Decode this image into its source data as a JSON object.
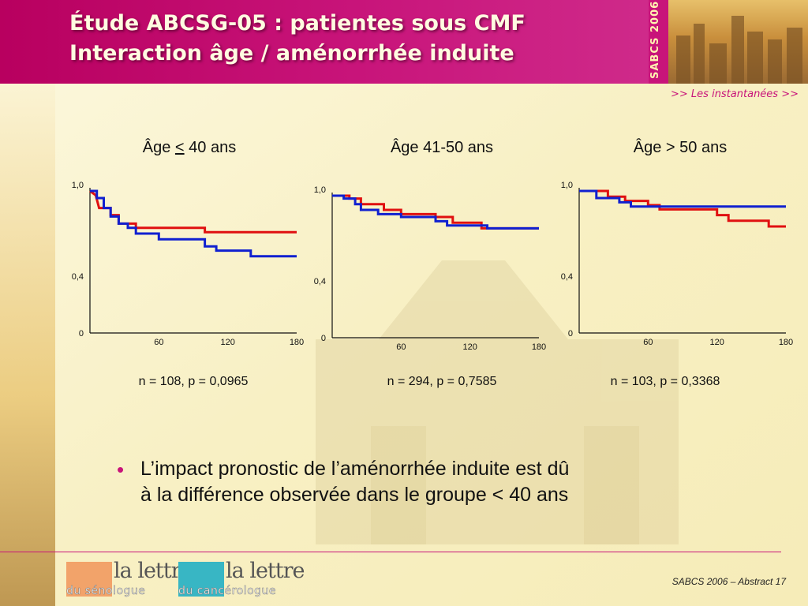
{
  "header": {
    "title_line1": "Étude ABCSG-05 : patientes sous CMF",
    "title_line2": "Interaction âge / aménorrhée induite",
    "sabcs_badge": "SABCS 2006",
    "nav_link": ">> Les instantanées >>"
  },
  "chart_data": [
    {
      "type": "line",
      "title_prefix": "Âge ",
      "title_symbol": "<",
      "title_suffix": " 40 ans",
      "stat": "n = 108, p = 0,0965",
      "xlim": [
        0,
        180
      ],
      "ylim": [
        0,
        1.0
      ],
      "x_ticks": [
        "60",
        "120",
        "180"
      ],
      "y_ticks": [
        "1,0",
        "0,4",
        "0"
      ],
      "series": [
        {
          "color": "#e01010",
          "step": [
            [
              0,
              1.0
            ],
            [
              5,
              0.97
            ],
            [
              8,
              0.88
            ],
            [
              18,
              0.88
            ],
            [
              18,
              0.83
            ],
            [
              25,
              0.83
            ],
            [
              25,
              0.77
            ],
            [
              40,
              0.77
            ],
            [
              40,
              0.74
            ],
            [
              100,
              0.74
            ],
            [
              100,
              0.71
            ],
            [
              180,
              0.71
            ]
          ]
        },
        {
          "color": "#1020d0",
          "step": [
            [
              0,
              1.0
            ],
            [
              6,
              1.0
            ],
            [
              6,
              0.95
            ],
            [
              12,
              0.95
            ],
            [
              12,
              0.88
            ],
            [
              18,
              0.88
            ],
            [
              18,
              0.82
            ],
            [
              25,
              0.82
            ],
            [
              25,
              0.77
            ],
            [
              33,
              0.77
            ],
            [
              33,
              0.74
            ],
            [
              40,
              0.74
            ],
            [
              40,
              0.7
            ],
            [
              60,
              0.7
            ],
            [
              60,
              0.66
            ],
            [
              100,
              0.66
            ],
            [
              100,
              0.61
            ],
            [
              110,
              0.61
            ],
            [
              110,
              0.58
            ],
            [
              140,
              0.58
            ],
            [
              140,
              0.54
            ],
            [
              180,
              0.54
            ]
          ]
        }
      ]
    },
    {
      "type": "line",
      "title_prefix": "Âge 41-50 ans",
      "title_symbol": "",
      "title_suffix": "",
      "stat": "n = 294, p = 0,7585",
      "xlim": [
        0,
        180
      ],
      "ylim": [
        0,
        1.0
      ],
      "x_ticks": [
        "60",
        "120",
        "180"
      ],
      "y_ticks": [
        "1,0",
        "0,4",
        "0"
      ],
      "series": [
        {
          "color": "#e01010",
          "step": [
            [
              0,
              1.0
            ],
            [
              15,
              1.0
            ],
            [
              15,
              0.98
            ],
            [
              25,
              0.98
            ],
            [
              25,
              0.94
            ],
            [
              45,
              0.94
            ],
            [
              45,
              0.9
            ],
            [
              60,
              0.9
            ],
            [
              60,
              0.87
            ],
            [
              90,
              0.87
            ],
            [
              90,
              0.85
            ],
            [
              105,
              0.85
            ],
            [
              105,
              0.81
            ],
            [
              130,
              0.81
            ],
            [
              130,
              0.77
            ],
            [
              180,
              0.77
            ]
          ]
        },
        {
          "color": "#1020d0",
          "step": [
            [
              0,
              1.0
            ],
            [
              10,
              1.0
            ],
            [
              10,
              0.98
            ],
            [
              20,
              0.98
            ],
            [
              20,
              0.94
            ],
            [
              25,
              0.94
            ],
            [
              25,
              0.9
            ],
            [
              40,
              0.9
            ],
            [
              40,
              0.87
            ],
            [
              60,
              0.87
            ],
            [
              60,
              0.85
            ],
            [
              90,
              0.85
            ],
            [
              90,
              0.82
            ],
            [
              100,
              0.82
            ],
            [
              100,
              0.79
            ],
            [
              135,
              0.79
            ],
            [
              135,
              0.77
            ],
            [
              180,
              0.77
            ]
          ]
        }
      ]
    },
    {
      "type": "line",
      "title_prefix": "Âge > 50 ans",
      "title_symbol": "",
      "title_suffix": "",
      "stat": "n = 103, p = 0,3368",
      "xlim": [
        0,
        180
      ],
      "ylim": [
        0,
        1.0
      ],
      "x_ticks": [
        "60",
        "120",
        "180"
      ],
      "y_ticks": [
        "1,0",
        "0,4",
        "0"
      ],
      "series": [
        {
          "color": "#e01010",
          "step": [
            [
              0,
              1.0
            ],
            [
              25,
              1.0
            ],
            [
              25,
              0.96
            ],
            [
              40,
              0.96
            ],
            [
              40,
              0.93
            ],
            [
              60,
              0.93
            ],
            [
              60,
              0.9
            ],
            [
              70,
              0.9
            ],
            [
              70,
              0.87
            ],
            [
              120,
              0.87
            ],
            [
              120,
              0.83
            ],
            [
              130,
              0.83
            ],
            [
              130,
              0.79
            ],
            [
              165,
              0.79
            ],
            [
              165,
              0.75
            ],
            [
              180,
              0.75
            ]
          ]
        },
        {
          "color": "#1020d0",
          "step": [
            [
              0,
              1.0
            ],
            [
              15,
              1.0
            ],
            [
              15,
              0.95
            ],
            [
              35,
              0.95
            ],
            [
              35,
              0.92
            ],
            [
              45,
              0.92
            ],
            [
              45,
              0.89
            ],
            [
              180,
              0.89
            ]
          ]
        }
      ]
    }
  ],
  "bullet": {
    "line1": "L’impact pronostic de l’aménorrhée induite est dû",
    "line2": "à la différence observée dans le groupe < 40 ans"
  },
  "footer": {
    "reference": "SABCS 2006 – Abstract 17",
    "logo1_top": "la lettre",
    "logo1_bottom": "du sénologue",
    "logo2_top": "la lettre",
    "logo2_bottom": "du cancérologue",
    "logo1_color": "#f2a36a",
    "logo2_color": "#38b6c4"
  }
}
